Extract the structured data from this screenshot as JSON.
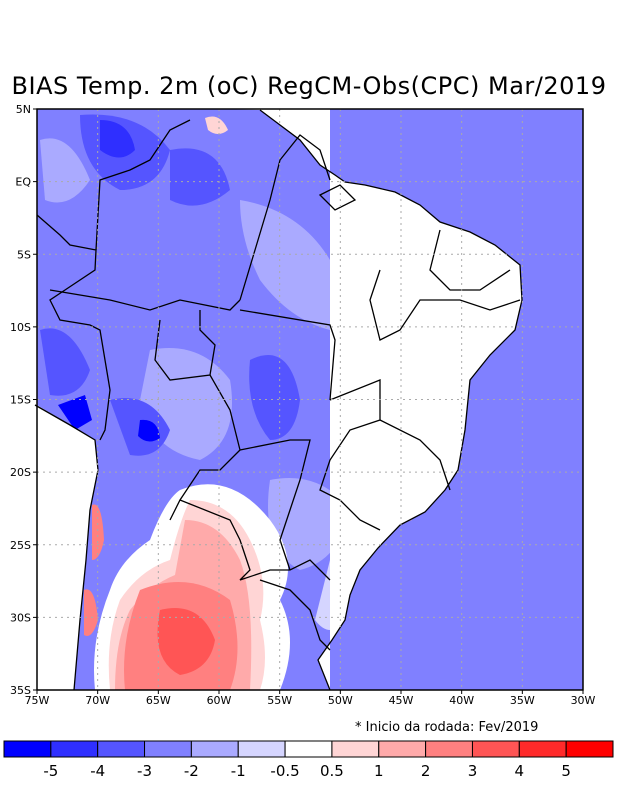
{
  "title": "BIAS Temp. 2m (oC) RegCM-Obs(CPC) Mar/2019",
  "footnote": "* Inicio da rodada: Fev/2019",
  "axes": {
    "lat_labels": [
      "5N",
      "EQ",
      "5S",
      "10S",
      "15S",
      "20S",
      "25S",
      "30S",
      "35S"
    ],
    "lon_labels": [
      "75W",
      "70W",
      "65W",
      "60W",
      "55W",
      "50W",
      "45W",
      "40W",
      "35W",
      "30W"
    ]
  },
  "colorbar": {
    "colors": [
      "#0000ff",
      "#2f2fff",
      "#5555ff",
      "#8080ff",
      "#aaaaff",
      "#d5d5ff",
      "#ffffff",
      "#ffd5d5",
      "#ffaaaa",
      "#ff8080",
      "#ff5555",
      "#ff2a2a",
      "#ff0000"
    ],
    "labels": [
      "-5",
      "-4",
      "-3",
      "-2",
      "-1",
      "-0.5",
      "0.5",
      "1",
      "2",
      "3",
      "4",
      "5"
    ]
  }
}
